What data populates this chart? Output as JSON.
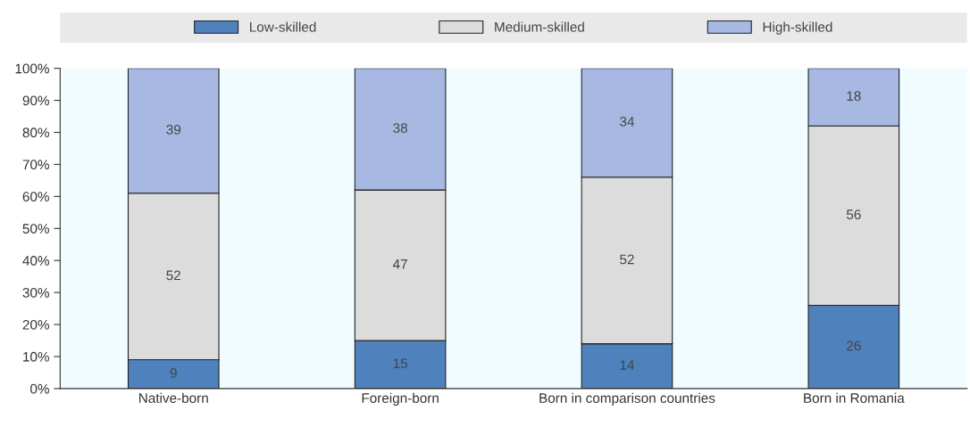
{
  "chart_data": {
    "type": "bar",
    "stacked": true,
    "categories": [
      "Native-born",
      "Foreign-born",
      "Born in comparison countries",
      "Born in Romania"
    ],
    "series": [
      {
        "name": "Low-skilled",
        "color": "#4f81bd",
        "values": [
          9,
          15,
          14,
          26
        ]
      },
      {
        "name": "Medium-skilled",
        "color": "#dcdcdc",
        "values": [
          52,
          47,
          52,
          56
        ]
      },
      {
        "name": "High-skilled",
        "color": "#a7b9e3",
        "values": [
          39,
          38,
          34,
          18
        ]
      }
    ],
    "ylim": [
      0,
      100
    ],
    "yticks": [
      {
        "value": 0,
        "label": "0%"
      },
      {
        "value": 10,
        "label": "10%"
      },
      {
        "value": 20,
        "label": "20%"
      },
      {
        "value": 30,
        "label": "30%"
      },
      {
        "value": 40,
        "label": "40%"
      },
      {
        "value": 50,
        "label": "50%"
      },
      {
        "value": 60,
        "label": "60%"
      },
      {
        "value": 70,
        "label": "70%"
      },
      {
        "value": 80,
        "label": "80%"
      },
      {
        "value": 90,
        "label": "90%"
      },
      {
        "value": 100,
        "label": "100%"
      }
    ],
    "data_labels": true,
    "grid": false,
    "legend": "top"
  }
}
